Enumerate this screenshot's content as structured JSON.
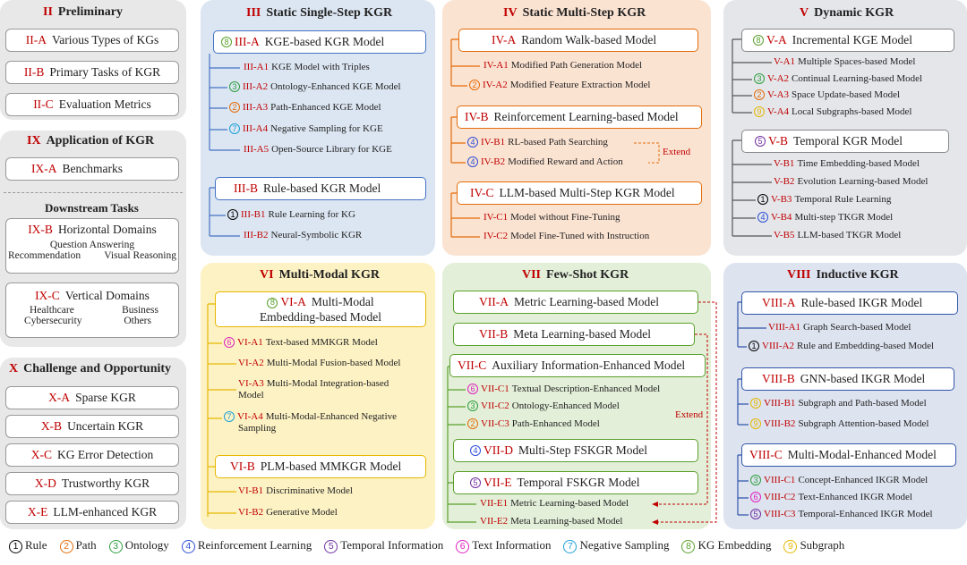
{
  "left": {
    "preliminary": {
      "num": "II",
      "title": "Preliminary",
      "items": [
        {
          "code": "II-A",
          "label": "Various Types of KGs"
        },
        {
          "code": "II-B",
          "label": "Primary Tasks of KGR"
        },
        {
          "code": "II-C",
          "label": "Evaluation Metrics"
        }
      ]
    },
    "application": {
      "num": "IX",
      "title": "Application of KGR",
      "benchmarks": {
        "code": "IX-A",
        "label": "Benchmarks"
      },
      "downstream": "Downstream Tasks",
      "horizontal": {
        "code": "IX-B",
        "label": "Horizontal Domains",
        "l1": "Question Answering",
        "l2a": "Recommendation",
        "l2b": "Visual Reasoning"
      },
      "vertical": {
        "code": "IX-C",
        "label": "Vertical Domains",
        "a": "Healthcare",
        "b": "Business",
        "c": "Cybersecurity",
        "d": "Others"
      }
    },
    "challenge": {
      "num": "X",
      "title": "Challenge and Opportunity",
      "items": [
        {
          "code": "X-A",
          "label": "Sparse KGR"
        },
        {
          "code": "X-B",
          "label": "Uncertain KGR"
        },
        {
          "code": "X-C",
          "label": "KG Error Detection"
        },
        {
          "code": "X-D",
          "label": "Trustworthy KGR"
        },
        {
          "code": "X-E",
          "label": "LLM-enhanced KGR"
        }
      ]
    }
  },
  "s3": {
    "num": "III",
    "title": "Static Single-Step KGR",
    "a": {
      "badge": "8",
      "code": "III-A",
      "label": "KGE-based KGR Model"
    },
    "a_items": [
      {
        "badge": "",
        "code": "III-A1",
        "label": "KGE Model with Triples"
      },
      {
        "badge": "3",
        "code": "III-A2",
        "label": "Ontology-Enhanced KGE Model"
      },
      {
        "badge": "2",
        "code": "III-A3",
        "label": "Path-Enhanced KGE Model"
      },
      {
        "badge": "7",
        "code": "III-A4",
        "label": "Negative Sampling for KGE"
      },
      {
        "badge": "",
        "code": "III-A5",
        "label": "Open-Source Library for KGE"
      }
    ],
    "b": {
      "code": "III-B",
      "label": "Rule-based KGR Model"
    },
    "b_items": [
      {
        "badge": "1",
        "code": "III-B1",
        "label": "Rule Learning for KG"
      },
      {
        "badge": "",
        "code": "III-B2",
        "label": "Neural-Symbolic KGR"
      }
    ]
  },
  "s4": {
    "num": "IV",
    "title": "Static Multi-Step KGR",
    "a": {
      "code": "IV-A",
      "label": "Random Walk-based Model"
    },
    "a_items": [
      {
        "badge": "",
        "code": "IV-A1",
        "label": "Modified Path Generation Model"
      },
      {
        "badge": "2",
        "code": "IV-A2",
        "label": "Modified Feature Extraction Model"
      }
    ],
    "b": {
      "code": "IV-B",
      "label": "Reinforcement Learning-based Model"
    },
    "b_items": [
      {
        "badge": "4",
        "code": "IV-B1",
        "label": "RL-based Path Searching"
      },
      {
        "badge": "4",
        "code": "IV-B2",
        "label": "Modified Reward and Action"
      }
    ],
    "extend": "Extend",
    "c": {
      "code": "IV-C",
      "label": "LLM-based Multi-Step KGR Model"
    },
    "c_items": [
      {
        "badge": "",
        "code": "IV-C1",
        "label": "Model without Fine-Tuning"
      },
      {
        "badge": "",
        "code": "IV-C2",
        "label": "Model Fine-Tuned with Instruction"
      }
    ]
  },
  "s5": {
    "num": "V",
    "title": "Dynamic KGR",
    "a": {
      "badge": "8",
      "code": "V-A",
      "label": "Incremental KGE Model"
    },
    "a_items": [
      {
        "badge": "",
        "code": "V-A1",
        "label": "Multiple Spaces-based Model"
      },
      {
        "badge": "3",
        "code": "V-A2",
        "label": "Continual Learning-based Model"
      },
      {
        "badge": "2",
        "code": "V-A3",
        "label": "Space Update-based Model"
      },
      {
        "badge": "9",
        "code": "V-A4",
        "label": "Local Subgraphs-based Model"
      }
    ],
    "b": {
      "badge": "5",
      "code": "V-B",
      "label": "Temporal KGR Model"
    },
    "b_items": [
      {
        "badge": "",
        "code": "V-B1",
        "label": "Time Embedding-based Model"
      },
      {
        "badge": "",
        "code": "V-B2",
        "label": "Evolution Learning-based Model"
      },
      {
        "badge": "1",
        "code": "V-B3",
        "label": "Temporal Rule Learning"
      },
      {
        "badge": "4",
        "code": "V-B4",
        "label": "Multi-step TKGR Model"
      },
      {
        "badge": "",
        "code": "V-B5",
        "label": "LLM-based TKGR Model"
      }
    ]
  },
  "s6": {
    "num": "VI",
    "title": "Multi-Modal KGR",
    "a": {
      "badge": "8",
      "code": "VI-A",
      "label": "Multi-Modal",
      "label2": "Embedding-based Model"
    },
    "a_items": [
      {
        "badge": "6",
        "code": "VI-A1",
        "label": "Text-based MMKGR Model"
      },
      {
        "badge": "",
        "code": "VI-A2",
        "label": "Multi-Modal Fusion-based Model"
      },
      {
        "badge": "",
        "code": "VI-A3",
        "label": "Multi-Modal Integration-based",
        "label2": "Model"
      },
      {
        "badge": "7",
        "code": "VI-A4",
        "label": "Multi-Modal-Enhanced Negative",
        "label2": "Sampling"
      }
    ],
    "b": {
      "code": "VI-B",
      "label": "PLM-based MMKGR Model"
    },
    "b_items": [
      {
        "badge": "",
        "code": "VI-B1",
        "label": "Discriminative Model"
      },
      {
        "badge": "",
        "code": "VI-B2",
        "label": "Generative Model"
      }
    ]
  },
  "s7": {
    "num": "VII",
    "title": "Few-Shot KGR",
    "a": {
      "code": "VII-A",
      "label": "Metric Learning-based Model"
    },
    "b": {
      "code": "VII-B",
      "label": "Meta Learning-based Model"
    },
    "c": {
      "code": "VII-C",
      "label": "Auxiliary Information-Enhanced Model"
    },
    "c_items": [
      {
        "badge": "6",
        "code": "VII-C1",
        "label": "Textual Description-Enhanced Model"
      },
      {
        "badge": "3",
        "code": "VII-C2",
        "label": "Ontology-Enhanced Model"
      },
      {
        "badge": "2",
        "code": "VII-C3",
        "label": "Path-Enhanced Model"
      }
    ],
    "extend": "Extend",
    "d": {
      "badge": "4",
      "code": "VII-D",
      "label": "Multi-Step FSKGR Model"
    },
    "e": {
      "badge": "5",
      "code": "VII-E",
      "label": "Temporal FSKGR Model"
    },
    "e_items": [
      {
        "badge": "",
        "code": "VII-E1",
        "label": "Metric Learning-based Model"
      },
      {
        "badge": "",
        "code": "VII-E2",
        "label": "Meta Learning-based Model"
      }
    ]
  },
  "s8": {
    "num": "VIII",
    "title": "Inductive KGR",
    "a": {
      "code": "VIII-A",
      "label": "Rule-based IKGR Model"
    },
    "a_items": [
      {
        "badge": "",
        "code": "VIII-A1",
        "label": "Graph Search-based Model"
      },
      {
        "badge": "1",
        "code": "VIII-A2",
        "label": "Rule and Embedding-based Model"
      }
    ],
    "b": {
      "code": "VIII-B",
      "label": "GNN-based IKGR Model"
    },
    "b_items": [
      {
        "badge": "9",
        "code": "VIII-B1",
        "label": "Subgraph and Path-based Model"
      },
      {
        "badge": "9",
        "code": "VIII-B2",
        "label": "Subgraph Attention-based Model"
      }
    ],
    "c": {
      "code": "VIII-C",
      "label": "Multi-Modal-Enhanced Model"
    },
    "c_items": [
      {
        "badge": "3",
        "code": "VIII-C1",
        "label": "Concept-Enhanced IKGR Model"
      },
      {
        "badge": "6",
        "code": "VIII-C2",
        "label": "Text-Enhanced IKGR Model"
      },
      {
        "badge": "5",
        "code": "VIII-C3",
        "label": "Temporal-Enhanced IKGR Model"
      }
    ]
  },
  "legend": [
    {
      "n": "1",
      "label": "Rule"
    },
    {
      "n": "2",
      "label": "Path"
    },
    {
      "n": "3",
      "label": "Ontology"
    },
    {
      "n": "4",
      "label": "Reinforcement Learning"
    },
    {
      "n": "5",
      "label": "Temporal Information"
    },
    {
      "n": "6",
      "label": "Text Information"
    },
    {
      "n": "7",
      "label": "Negative Sampling"
    },
    {
      "n": "8",
      "label": "KG Embedding"
    },
    {
      "n": "9",
      "label": "Subgraph"
    }
  ],
  "colors": {
    "red": "#c00000",
    "blue_panel": "#dce6f2",
    "orange_panel": "#fbe3d2",
    "gray_panel": "#e4e6ea",
    "yellow_panel": "#fdf2c4",
    "green_panel": "#e3efd9",
    "navy_panel": "#dde3ef"
  }
}
